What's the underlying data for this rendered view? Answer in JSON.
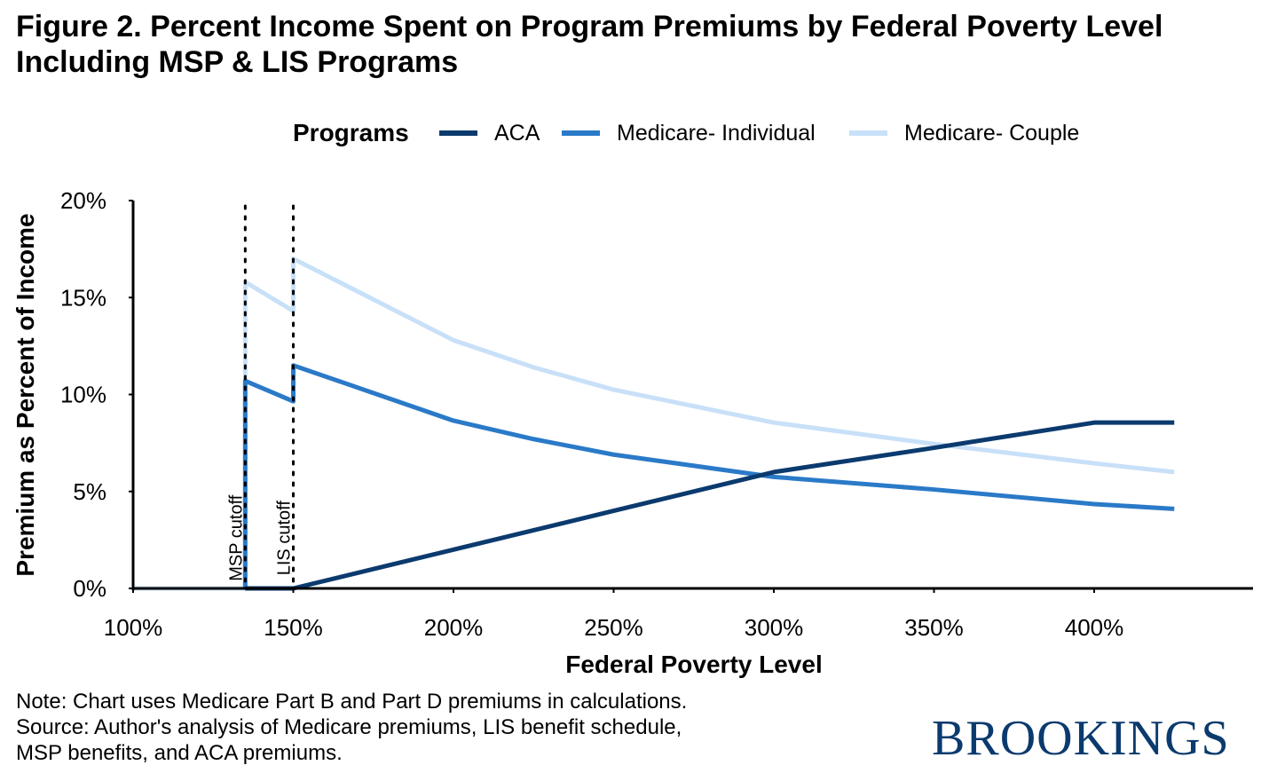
{
  "title_line1": "Figure 2. Percent Income Spent on Program Premiums by Federal Poverty Level",
  "title_line2": "Including MSP & LIS Programs",
  "notes": [
    "Note: Chart uses Medicare Part B and Part D premiums in calculations.",
    "Source: Author's analysis of Medicare premiums, LIS benefit schedule,",
    "MSP benefits, and ACA premiums."
  ],
  "logo_text": "BROOKINGS",
  "chart_data": {
    "type": "line",
    "legend_title": "Programs",
    "legend_position": "top",
    "xlabel": "Federal Poverty Level",
    "ylabel": "Premium as Percent of Income",
    "xlim": [
      100,
      450
    ],
    "ylim": [
      0,
      20
    ],
    "x_ticks": [
      100,
      150,
      200,
      250,
      300,
      350,
      400
    ],
    "x_tick_labels": [
      "100%",
      "150%",
      "200%",
      "250%",
      "300%",
      "350%",
      "400%"
    ],
    "y_ticks": [
      0,
      5,
      10,
      15,
      20
    ],
    "y_tick_labels": [
      "0%",
      "5%",
      "10%",
      "15%",
      "20%"
    ],
    "grid": false,
    "reference_lines": [
      {
        "x": 135,
        "label": "MSP cutoff"
      },
      {
        "x": 150,
        "label": "LIS cutoff"
      }
    ],
    "series": [
      {
        "name": "ACA",
        "color": "#0b3a6e",
        "points": [
          [
            135,
            0
          ],
          [
            150,
            0
          ],
          [
            200,
            2.0
          ],
          [
            250,
            4.0
          ],
          [
            300,
            6.0
          ],
          [
            350,
            7.25
          ],
          [
            400,
            8.55
          ],
          [
            425,
            8.55
          ]
        ]
      },
      {
        "name": "Medicare- Individual",
        "color": "#2a7ac8",
        "points": [
          [
            135,
            0
          ],
          [
            135,
            10.7
          ],
          [
            150,
            9.65
          ],
          [
            150,
            11.5
          ],
          [
            200,
            8.65
          ],
          [
            225,
            7.7
          ],
          [
            250,
            6.9
          ],
          [
            300,
            5.75
          ],
          [
            350,
            5.1
          ],
          [
            400,
            4.35
          ],
          [
            425,
            4.1
          ]
        ]
      },
      {
        "name": "Medicare- Couple",
        "color": "#c8e0f8",
        "points": [
          [
            100,
            0
          ],
          [
            135,
            0
          ],
          [
            135,
            15.8
          ],
          [
            150,
            14.3
          ],
          [
            150,
            17.0
          ],
          [
            200,
            12.8
          ],
          [
            225,
            11.4
          ],
          [
            250,
            10.25
          ],
          [
            300,
            8.55
          ],
          [
            350,
            7.45
          ],
          [
            400,
            6.45
          ],
          [
            425,
            6.0
          ]
        ]
      }
    ]
  }
}
